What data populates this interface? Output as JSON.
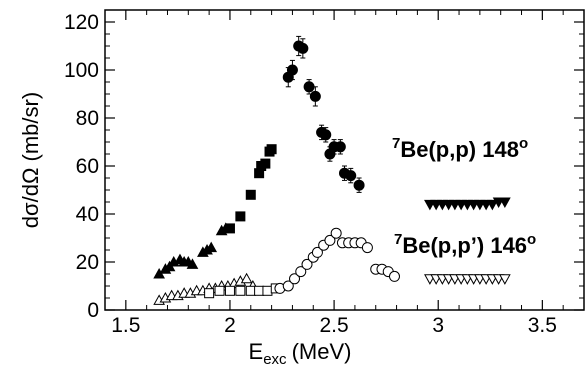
{
  "chart_data": {
    "type": "scatter",
    "title": "",
    "xlabel": "E",
    "xlabel_sub": "exc",
    "xlabel_unit": "(MeV)",
    "ylabel": "dσ/dΩ (mb/sr)",
    "xlim": [
      1.4,
      3.7
    ],
    "ylim": [
      0,
      125
    ],
    "xticks": [
      1.5,
      2,
      2.5,
      3,
      3.5
    ],
    "xtick_labels": [
      "1.5",
      "2",
      "2.5",
      "3",
      "3.5"
    ],
    "yticks": [
      0,
      20,
      40,
      60,
      80,
      100,
      120
    ],
    "ytick_labels": [
      "0",
      "20",
      "40",
      "60",
      "80",
      "100",
      "120"
    ],
    "grid": false,
    "annotations": [
      {
        "base": "Be(p,p) 148",
        "sup_pre": "7",
        "sup_post": "o"
      },
      {
        "base": "Be(p,p’) 146",
        "sup_pre": "7",
        "sup_post": "o"
      }
    ],
    "series": [
      {
        "marker": "triangle-up-filled",
        "points": [
          [
            1.66,
            15
          ],
          [
            1.69,
            17
          ],
          [
            1.71,
            18
          ],
          [
            1.73,
            20
          ],
          [
            1.76,
            21
          ],
          [
            1.78,
            20
          ],
          [
            1.8,
            20
          ],
          [
            1.82,
            19
          ],
          [
            1.87,
            24
          ],
          [
            1.89,
            25
          ],
          [
            1.91,
            26
          ],
          [
            1.96,
            33
          ],
          [
            1.98,
            34
          ]
        ]
      },
      {
        "marker": "square-filled",
        "points": [
          [
            2.0,
            34
          ],
          [
            2.05,
            39
          ],
          [
            2.1,
            48
          ],
          [
            2.14,
            57
          ],
          [
            2.15,
            60
          ],
          [
            2.17,
            61
          ],
          [
            2.19,
            66
          ],
          [
            2.2,
            67
          ]
        ]
      },
      {
        "marker": "circle-filled",
        "points": [
          [
            2.28,
            97
          ],
          [
            2.3,
            100
          ],
          [
            2.33,
            110
          ],
          [
            2.35,
            109
          ],
          [
            2.38,
            93
          ],
          [
            2.41,
            89
          ],
          [
            2.44,
            74
          ],
          [
            2.46,
            73
          ],
          [
            2.48,
            65
          ],
          [
            2.5,
            68
          ],
          [
            2.53,
            68
          ],
          [
            2.55,
            57
          ],
          [
            2.58,
            56
          ],
          [
            2.62,
            52
          ]
        ],
        "errors": [
          4,
          4,
          4,
          4,
          3,
          4,
          3,
          3,
          3,
          3,
          3,
          3,
          3,
          3
        ]
      },
      {
        "marker": "triangle-down-filled",
        "points": [
          [
            2.96,
            44
          ],
          [
            2.99,
            44
          ],
          [
            3.02,
            44
          ],
          [
            3.05,
            44
          ],
          [
            3.08,
            44
          ],
          [
            3.11,
            44
          ],
          [
            3.14,
            44
          ],
          [
            3.17,
            44
          ],
          [
            3.2,
            44
          ],
          [
            3.23,
            44
          ],
          [
            3.26,
            44
          ],
          [
            3.29,
            45
          ],
          [
            3.32,
            45
          ]
        ]
      },
      {
        "marker": "triangle-up-open",
        "points": [
          [
            1.66,
            4
          ],
          [
            1.69,
            5
          ],
          [
            1.72,
            6
          ],
          [
            1.75,
            6
          ],
          [
            1.78,
            7
          ],
          [
            1.81,
            7
          ],
          [
            1.84,
            8
          ],
          [
            1.87,
            8
          ],
          [
            1.9,
            9
          ],
          [
            1.93,
            9
          ],
          [
            1.96,
            10
          ],
          [
            1.99,
            10
          ],
          [
            2.02,
            11
          ],
          [
            2.05,
            12
          ],
          [
            2.08,
            13
          ],
          [
            2.11,
            10
          ]
        ]
      },
      {
        "marker": "square-open",
        "points": [
          [
            1.9,
            7
          ],
          [
            1.95,
            8
          ],
          [
            2.0,
            8
          ],
          [
            2.05,
            8
          ],
          [
            2.1,
            8
          ],
          [
            2.14,
            8
          ],
          [
            2.18,
            8
          ],
          [
            2.22,
            9
          ]
        ]
      },
      {
        "marker": "circle-open",
        "points": [
          [
            2.24,
            9
          ],
          [
            2.28,
            10
          ],
          [
            2.31,
            13
          ],
          [
            2.34,
            16
          ],
          [
            2.37,
            19
          ],
          [
            2.4,
            22
          ],
          [
            2.42,
            24
          ],
          [
            2.45,
            27
          ],
          [
            2.48,
            29
          ],
          [
            2.51,
            32
          ],
          [
            2.54,
            28
          ],
          [
            2.57,
            28
          ],
          [
            2.6,
            28
          ],
          [
            2.63,
            28
          ],
          [
            2.66,
            26
          ],
          [
            2.7,
            17
          ],
          [
            2.73,
            17
          ],
          [
            2.76,
            16
          ],
          [
            2.79,
            14
          ]
        ]
      },
      {
        "marker": "triangle-down-open",
        "points": [
          [
            2.96,
            13
          ],
          [
            2.99,
            13
          ],
          [
            3.02,
            13
          ],
          [
            3.05,
            13
          ],
          [
            3.08,
            13
          ],
          [
            3.11,
            13
          ],
          [
            3.14,
            13
          ],
          [
            3.17,
            13
          ],
          [
            3.2,
            13
          ],
          [
            3.23,
            13
          ],
          [
            3.26,
            13
          ],
          [
            3.29,
            13
          ],
          [
            3.32,
            13
          ]
        ]
      }
    ]
  }
}
